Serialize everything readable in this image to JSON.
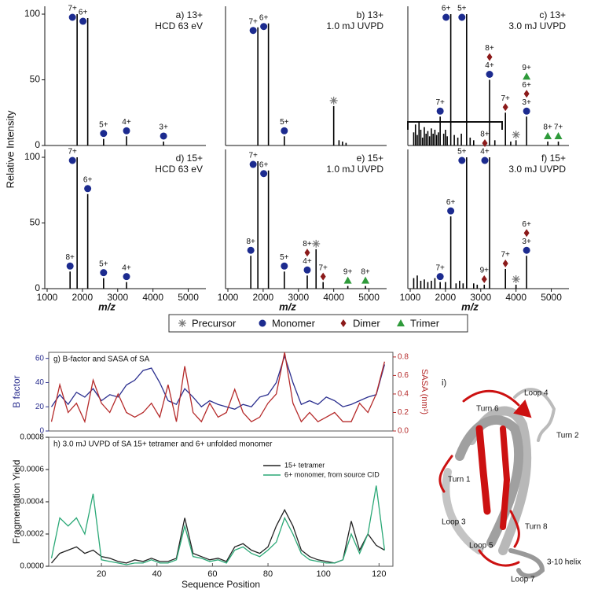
{
  "figure_axes": {
    "ylabel": "Relative Intensity",
    "xlabel": "m/z"
  },
  "legend": [
    {
      "name": "Precursor",
      "color": "#777777",
      "marker": "asterisk"
    },
    {
      "name": "Monomer",
      "color": "#1c2b8f",
      "marker": "circle"
    },
    {
      "name": "Dimer",
      "color": "#8b1a1a",
      "marker": "diamond"
    },
    {
      "name": "Trimer",
      "color": "#2e9a3a",
      "marker": "triangle"
    }
  ],
  "chart_data": [
    {
      "type": "spectrum",
      "title": [
        "a) 13+",
        "HCD 63 eV"
      ],
      "xlim": [
        1000,
        5500
      ],
      "ylim": [
        0,
        100
      ],
      "yticks": [
        0,
        50,
        100
      ],
      "peaks": [
        {
          "x": 1850,
          "value": 100,
          "ions": [
            {
              "label": "7+",
              "kind": 1
            }
          ]
        },
        {
          "x": 2150,
          "value": 97,
          "ions": [
            {
              "label": "6+",
              "kind": 1
            }
          ]
        },
        {
          "x": 2600,
          "value": 5,
          "ions": [
            {
              "label": "5+",
              "kind": 1
            }
          ]
        },
        {
          "x": 3250,
          "value": 7,
          "ions": [
            {
              "label": "4+",
              "kind": 1
            }
          ]
        },
        {
          "x": 4300,
          "value": 3,
          "ions": [
            {
              "label": "3+",
              "kind": 1
            }
          ]
        }
      ]
    },
    {
      "type": "spectrum",
      "title": [
        "b) 13+",
        "1.0 mJ UVPD"
      ],
      "xlim": [
        1000,
        5500
      ],
      "ylim": [
        0,
        100
      ],
      "peaks": [
        {
          "x": 1850,
          "value": 90,
          "ions": [
            {
              "label": "7+",
              "kind": 1
            }
          ]
        },
        {
          "x": 2150,
          "value": 93,
          "ions": [
            {
              "label": "6+",
              "kind": 1
            }
          ]
        },
        {
          "x": 2600,
          "value": 7,
          "ions": [
            {
              "label": "5+",
              "kind": 1
            }
          ]
        },
        {
          "x": 4000,
          "value": 30,
          "ions": [
            {
              "kind": 0
            }
          ]
        },
        {
          "x": 4150,
          "value": 4
        },
        {
          "x": 4250,
          "value": 3
        },
        {
          "x": 4350,
          "value": 2
        }
      ]
    },
    {
      "type": "spectrum",
      "title": [
        "c) 13+",
        "3.0 mJ UVPD"
      ],
      "xlim": [
        1000,
        5500
      ],
      "ylim": [
        0,
        100
      ],
      "peaks": [
        {
          "x": 1100,
          "value": 10
        },
        {
          "x": 1150,
          "value": 16
        },
        {
          "x": 1200,
          "value": 8
        },
        {
          "x": 1250,
          "value": 18
        },
        {
          "x": 1300,
          "value": 12
        },
        {
          "x": 1350,
          "value": 6
        },
        {
          "x": 1400,
          "value": 14
        },
        {
          "x": 1450,
          "value": 9
        },
        {
          "x": 1500,
          "value": 11
        },
        {
          "x": 1550,
          "value": 7
        },
        {
          "x": 1600,
          "value": 13
        },
        {
          "x": 1650,
          "value": 9
        },
        {
          "x": 1700,
          "value": 12
        },
        {
          "x": 1750,
          "value": 8
        },
        {
          "x": 1800,
          "value": 10
        },
        {
          "x": 1950,
          "value": 9
        },
        {
          "x": 2000,
          "value": 12
        },
        {
          "x": 2050,
          "value": 7
        },
        {
          "x": 2250,
          "value": 8
        },
        {
          "x": 2350,
          "value": 6
        },
        {
          "x": 2450,
          "value": 9
        },
        {
          "x": 2700,
          "value": 6
        },
        {
          "x": 2800,
          "value": 4
        },
        {
          "x": 3400,
          "value": 4
        },
        {
          "x": 3850,
          "value": 3
        },
        {
          "x": 1850,
          "value": 22,
          "ions": [
            {
              "label": "7+",
              "kind": 1
            }
          ]
        },
        {
          "x": 2150,
          "value": 100,
          "ions": [
            {
              "label": "6+",
              "kind": 1
            }
          ]
        },
        {
          "x": 2600,
          "value": 100,
          "ions": [
            {
              "label": "5+",
              "kind": 1
            }
          ]
        },
        {
          "x": 3250,
          "value": 50,
          "ions": [
            {
              "label": "8+",
              "kind": 2
            },
            {
              "label": "4+",
              "kind": 1
            }
          ]
        },
        {
          "x": 3700,
          "value": 25,
          "ions": [
            {
              "label": "7+",
              "kind": 2
            }
          ]
        },
        {
          "x": 4000,
          "value": 4,
          "ions": [
            {
              "kind": 0
            }
          ]
        },
        {
          "x": 4300,
          "value": 22,
          "ions": [
            {
              "label": "9+",
              "kind": 3
            },
            {
              "label": "6+",
              "kind": 2
            },
            {
              "label": "3+",
              "kind": 1
            }
          ]
        },
        {
          "x": 4900,
          "value": 3,
          "ions": [
            {
              "label": "8+",
              "kind": 3
            }
          ]
        },
        {
          "x": 5200,
          "value": 3,
          "ions": [
            {
              "label": "7+",
              "kind": 3
            }
          ]
        }
      ]
    },
    {
      "type": "spectrum",
      "title": [
        "d) 15+",
        "HCD 63 eV"
      ],
      "xlim": [
        1000,
        5500
      ],
      "ylim": [
        0,
        100
      ],
      "yticks": [
        0,
        50,
        100
      ],
      "xticks": [
        1000,
        2000,
        3000,
        4000,
        5000
      ],
      "peaks": [
        {
          "x": 1650,
          "value": 13,
          "ions": [
            {
              "label": "8+",
              "kind": 1
            }
          ]
        },
        {
          "x": 1850,
          "value": 100,
          "ions": [
            {
              "label": "7+",
              "kind": 1
            }
          ]
        },
        {
          "x": 2150,
          "value": 72,
          "ions": [
            {
              "label": "6+",
              "kind": 1
            }
          ]
        },
        {
          "x": 2600,
          "value": 8,
          "ions": [
            {
              "label": "5+",
              "kind": 1
            }
          ]
        },
        {
          "x": 3250,
          "value": 5,
          "ions": [
            {
              "label": "4+",
              "kind": 1
            }
          ]
        }
      ]
    },
    {
      "type": "spectrum",
      "title": [
        "e) 15+",
        "1.0 mJ UVPD"
      ],
      "xlim": [
        1000,
        5500
      ],
      "ylim": [
        0,
        100
      ],
      "xticks": [
        1000,
        2000,
        3000,
        4000,
        5000
      ],
      "peaks": [
        {
          "x": 1650,
          "value": 25,
          "ions": [
            {
              "label": "8+",
              "kind": 1
            }
          ]
        },
        {
          "x": 1850,
          "value": 97,
          "ions": [
            {
              "label": "7+",
              "kind": 1
            }
          ]
        },
        {
          "x": 2150,
          "value": 90,
          "ions": [
            {
              "label": "6+",
              "kind": 1
            }
          ]
        },
        {
          "x": 2600,
          "value": 13,
          "ions": [
            {
              "label": "5+",
              "kind": 1
            }
          ]
        },
        {
          "x": 3250,
          "value": 10,
          "ions": [
            {
              "label": "8+",
              "kind": 2
            },
            {
              "label": "4+",
              "kind": 1
            }
          ]
        },
        {
          "x": 3500,
          "value": 30,
          "ions": [
            {
              "kind": 0
            }
          ]
        },
        {
          "x": 3700,
          "value": 5,
          "ions": [
            {
              "label": "7+",
              "kind": 2
            }
          ]
        },
        {
          "x": 4400,
          "value": 2,
          "ions": [
            {
              "label": "9+",
              "kind": 3
            }
          ]
        },
        {
          "x": 4900,
          "value": 2,
          "ions": [
            {
              "label": "8+",
              "kind": 3
            }
          ]
        }
      ]
    },
    {
      "type": "spectrum",
      "title": [
        "f) 15+",
        "3.0 mJ UVPD"
      ],
      "xlim": [
        1000,
        5500
      ],
      "ylim": [
        0,
        100
      ],
      "xticks": [
        1000,
        2000,
        3000,
        4000,
        5000
      ],
      "peaks": [
        {
          "x": 1100,
          "value": 8
        },
        {
          "x": 1200,
          "value": 10
        },
        {
          "x": 1300,
          "value": 6
        },
        {
          "x": 1400,
          "value": 7
        },
        {
          "x": 1500,
          "value": 5
        },
        {
          "x": 1600,
          "value": 6
        },
        {
          "x": 1700,
          "value": 8
        },
        {
          "x": 2000,
          "value": 5
        },
        {
          "x": 2300,
          "value": 4
        },
        {
          "x": 2400,
          "value": 6
        },
        {
          "x": 2500,
          "value": 4
        },
        {
          "x": 2800,
          "value": 4
        },
        {
          "x": 2900,
          "value": 3
        },
        {
          "x": 1850,
          "value": 5,
          "ions": [
            {
              "label": "7+",
              "kind": 1
            }
          ]
        },
        {
          "x": 2150,
          "value": 55,
          "ions": [
            {
              "label": "6+",
              "kind": 1
            }
          ]
        },
        {
          "x": 2600,
          "value": 100,
          "ions": [
            {
              "label": "5+",
              "kind": 1
            }
          ]
        },
        {
          "x": 3100,
          "value": 3,
          "ions": [
            {
              "label": "9+",
              "kind": 2
            }
          ]
        },
        {
          "x": 3250,
          "value": 100,
          "ions": [
            {
              "label": "8+",
              "kind": 2
            },
            {
              "label": "4+",
              "kind": 1
            }
          ]
        },
        {
          "x": 3700,
          "value": 15,
          "ions": [
            {
              "label": "7+",
              "kind": 2
            }
          ]
        },
        {
          "x": 4000,
          "value": 3,
          "ions": [
            {
              "kind": 0
            }
          ]
        },
        {
          "x": 4300,
          "value": 25,
          "ions": [
            {
              "label": "6+",
              "kind": 2
            },
            {
              "label": "3+",
              "kind": 1
            }
          ]
        }
      ]
    },
    {
      "type": "line",
      "title": "g) B-factor and SASA of SA",
      "ylabel": "B factor",
      "y2label": "SASA (nm²)",
      "xlim": [
        1,
        125
      ],
      "ylim": [
        0,
        65
      ],
      "yticks": [
        0,
        20,
        40,
        60
      ],
      "y2lim": [
        0,
        0.85
      ],
      "y2ticks": [
        {
          "value": 0,
          "label": "0.0"
        },
        0.2,
        0.4,
        0.6,
        0.8
      ],
      "x": [
        2,
        5,
        8,
        11,
        14,
        17,
        20,
        23,
        26,
        29,
        32,
        35,
        38,
        41,
        44,
        47,
        50,
        53,
        56,
        59,
        62,
        65,
        68,
        71,
        74,
        77,
        80,
        83,
        86,
        89,
        92,
        95,
        98,
        101,
        104,
        107,
        110,
        113,
        116,
        119,
        122
      ],
      "series": [
        {
          "name": "B factor",
          "color": "#2b2f8f",
          "values": [
            20,
            30,
            22,
            32,
            28,
            35,
            25,
            30,
            28,
            38,
            42,
            50,
            52,
            40,
            25,
            22,
            35,
            28,
            20,
            25,
            22,
            20,
            18,
            22,
            20,
            28,
            30,
            40,
            62,
            40,
            22,
            25,
            22,
            28,
            25,
            20,
            22,
            25,
            28,
            30,
            55
          ]
        },
        {
          "name": "SASA",
          "color": "#b52a2a",
          "axis": "y2",
          "values": [
            0.1,
            0.5,
            0.2,
            0.3,
            0.1,
            0.55,
            0.3,
            0.2,
            0.4,
            0.2,
            0.15,
            0.2,
            0.3,
            0.15,
            0.5,
            0.1,
            0.7,
            0.2,
            0.1,
            0.3,
            0.15,
            0.2,
            0.45,
            0.2,
            0.1,
            0.15,
            0.3,
            0.4,
            0.85,
            0.3,
            0.1,
            0.2,
            0.1,
            0.15,
            0.2,
            0.1,
            0.1,
            0.3,
            0.2,
            0.4,
            0.75
          ]
        }
      ]
    },
    {
      "type": "line",
      "title": "h) 3.0 mJ UVPD of  SA 15+ tetramer and 6+ unfolded monomer",
      "ylabel": "Fragmentation Yield",
      "xlabel": "Sequence Position",
      "xlim": [
        1,
        125
      ],
      "xticks": [
        20,
        40,
        60,
        80,
        100,
        120
      ],
      "ylim": [
        0,
        0.0008
      ],
      "yticks": [
        {
          "value": 0,
          "label": "0.0000"
        },
        {
          "value": 0.0002,
          "label": "0.0002"
        },
        {
          "value": 0.0004,
          "label": "0.0004"
        },
        {
          "value": 0.0006,
          "label": "0.0006"
        },
        {
          "value": 0.0008,
          "label": "0.0008"
        }
      ],
      "x": [
        2,
        5,
        8,
        11,
        14,
        17,
        20,
        23,
        26,
        29,
        32,
        35,
        38,
        41,
        44,
        47,
        50,
        53,
        56,
        59,
        62,
        65,
        68,
        71,
        74,
        77,
        80,
        83,
        86,
        89,
        92,
        95,
        98,
        101,
        104,
        107,
        110,
        113,
        116,
        119,
        122
      ],
      "series": [
        {
          "name": "15+ tetramer",
          "color": "#222222",
          "values": [
            2e-05,
            8e-05,
            0.0001,
            0.00012,
            8e-05,
            0.0001,
            6e-05,
            5e-05,
            3e-05,
            2e-05,
            4e-05,
            3e-05,
            5e-05,
            3e-05,
            3e-05,
            5e-05,
            0.0003,
            8e-05,
            6e-05,
            4e-05,
            5e-05,
            3e-05,
            0.00012,
            0.00014,
            0.0001,
            8e-05,
            0.00012,
            0.00025,
            0.00035,
            0.00025,
            0.0001,
            6e-05,
            4e-05,
            3e-05,
            2e-05,
            4e-05,
            0.00028,
            0.0001,
            0.0002,
            0.00013,
            0.0001
          ]
        },
        {
          "name": "6+ monomer, from source CID",
          "color": "#2aa876",
          "values": [
            5e-05,
            0.0003,
            0.00025,
            0.0003,
            0.0002,
            0.00045,
            4e-05,
            3e-05,
            2e-05,
            1e-05,
            2e-05,
            2e-05,
            4e-05,
            2e-05,
            2e-05,
            4e-05,
            0.00025,
            6e-05,
            5e-05,
            3e-05,
            4e-05,
            2e-05,
            0.0001,
            0.00012,
            8e-05,
            6e-05,
            0.0001,
            0.00015,
            0.0003,
            0.0002,
            8e-05,
            4e-05,
            3e-05,
            2e-05,
            2e-05,
            4e-05,
            0.0002,
            8e-05,
            0.0002,
            0.0005,
            0.0001
          ]
        }
      ]
    }
  ],
  "structure": {
    "label": "i)",
    "regions": [
      "Turn 6",
      "Loop 4",
      "Turn 2",
      "Turn 1",
      "Loop 3",
      "Turn 8",
      "Loop 5",
      "3-10 helix",
      "Loop 7"
    ]
  }
}
